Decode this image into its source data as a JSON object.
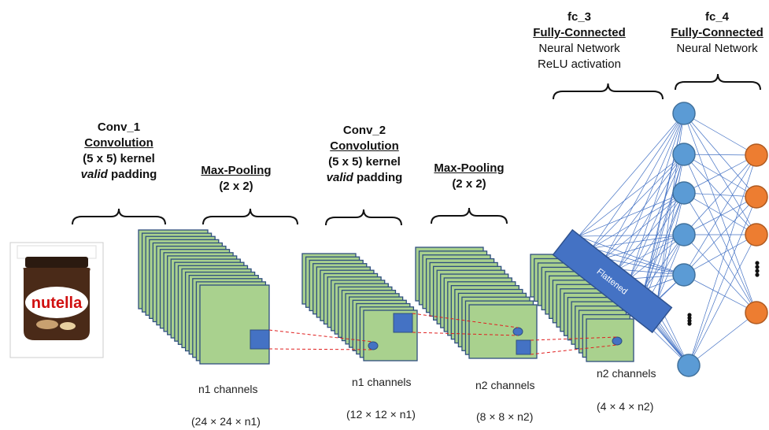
{
  "colors": {
    "fmap_fill": "#a9d18e",
    "fmap_stroke": "#2f4f7f",
    "kernel_fill": "#4472c4",
    "dash": "#e02020",
    "flatten_fill": "#4472c4",
    "node_blue": "#5b9bd5",
    "node_orange": "#ed7d31",
    "edge": "#4472c4"
  },
  "input_image": {
    "brand_text": "nutella",
    "icon": "nutella-jar-image"
  },
  "conv1": {
    "name": "Conv_1",
    "type": "Convolution",
    "kernel": "(5 x 5) kernel",
    "padding_word": "valid",
    "padding_rest": " padding"
  },
  "pool1": {
    "name": "Max-Pooling",
    "size": "(2 x 2)"
  },
  "conv2": {
    "name": "Conv_2",
    "type": "Convolution",
    "kernel": "(5 x 5) kernel",
    "padding_word": "valid",
    "padding_rest": " padding"
  },
  "pool2": {
    "name": "Max-Pooling",
    "size": "(2 x 2)"
  },
  "fc3": {
    "name": "fc_3",
    "type": "Fully-Connected",
    "line1": "Neural Network",
    "line2": "ReLU activation"
  },
  "fc4": {
    "name": "fc_4",
    "type": "Fully-Connected",
    "line1": "Neural Network"
  },
  "flattened": "Flattened",
  "stacks": [
    {
      "channels": "n1 channels",
      "dims": "(24 × 24 × n1)"
    },
    {
      "channels": "n1 channels",
      "dims": "(12 × 12 × n1)"
    },
    {
      "channels": "n2 channels",
      "dims": "(8 × 8 × n2)"
    },
    {
      "channels": "n2 channels",
      "dims": "(4 × 4 × n2)"
    }
  ]
}
